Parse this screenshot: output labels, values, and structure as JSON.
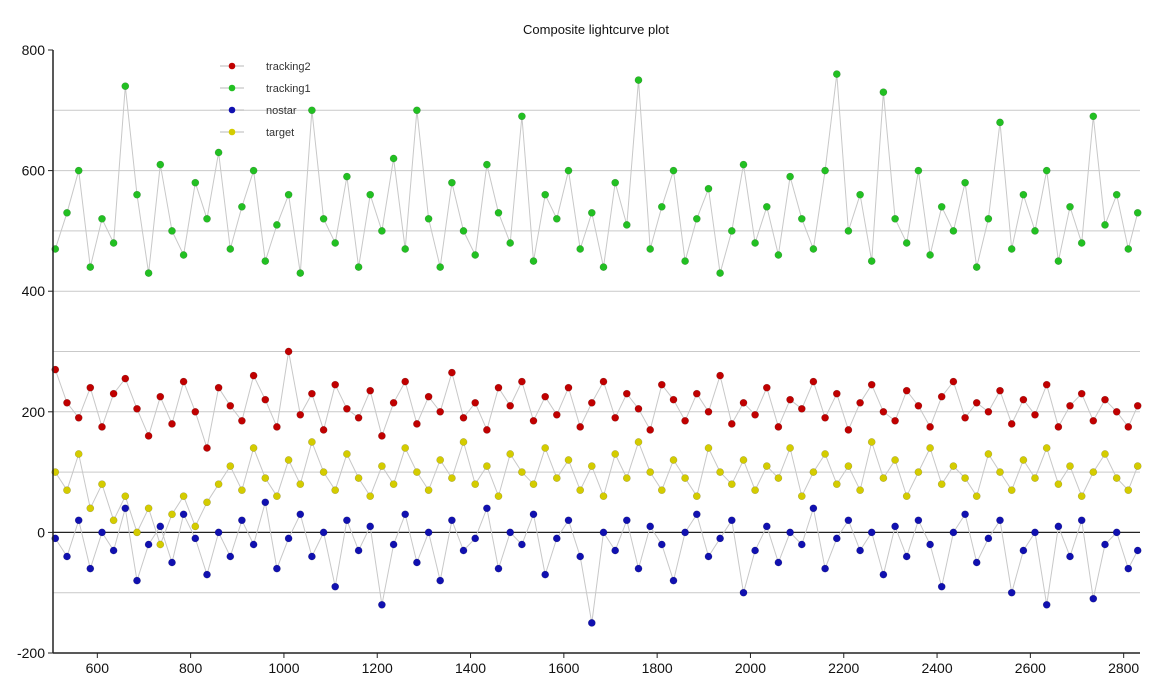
{
  "chart_data": {
    "type": "scatter",
    "title": "Composite lightcurve plot",
    "xlabel": "",
    "ylabel": "",
    "xlim": [
      505,
      2835
    ],
    "ylim": [
      -200,
      800
    ],
    "x_ticks": [
      600,
      800,
      1000,
      1200,
      1400,
      1600,
      1800,
      2000,
      2200,
      2400,
      2600,
      2800
    ],
    "y_ticks": [
      -200,
      0,
      200,
      400,
      600,
      800
    ],
    "grid": true,
    "legend_position": "top-left",
    "connector_color": "#c8c8c8",
    "series": [
      {
        "name": "tracking2",
        "color": "#c00000",
        "x": [
          510,
          535,
          560,
          585,
          610,
          635,
          660,
          685,
          710,
          735,
          760,
          785,
          810,
          835,
          860,
          885,
          910,
          935,
          960,
          985,
          1010,
          1035,
          1060,
          1085,
          1110,
          1135,
          1160,
          1185,
          1210,
          1235,
          1260,
          1285,
          1310,
          1335,
          1360,
          1385,
          1410,
          1435,
          1460,
          1485,
          1510,
          1535,
          1560,
          1585,
          1610,
          1635,
          1660,
          1685,
          1710,
          1735,
          1760,
          1785,
          1810,
          1835,
          1860,
          1885,
          1910,
          1935,
          1960,
          1985,
          2010,
          2035,
          2060,
          2085,
          2110,
          2135,
          2160,
          2185,
          2210,
          2235,
          2260,
          2285,
          2310,
          2335,
          2360,
          2385,
          2410,
          2435,
          2460,
          2485,
          2510,
          2535,
          2560,
          2585,
          2610,
          2635,
          2660,
          2685,
          2710,
          2735,
          2760,
          2785,
          2810,
          2830
        ],
        "y": [
          270,
          215,
          190,
          240,
          175,
          230,
          255,
          205,
          160,
          225,
          180,
          250,
          200,
          140,
          240,
          210,
          185,
          260,
          220,
          175,
          300,
          195,
          230,
          170,
          245,
          205,
          190,
          235,
          160,
          215,
          250,
          180,
          225,
          200,
          265,
          190,
          215,
          170,
          240,
          210,
          250,
          185,
          225,
          195,
          240,
          175,
          215,
          250,
          190,
          230,
          205,
          170,
          245,
          220,
          185,
          230,
          200,
          260,
          180,
          215,
          195,
          240,
          175,
          220,
          205,
          250,
          190,
          230,
          170,
          215,
          245,
          200,
          185,
          235,
          210,
          175,
          225,
          250,
          190,
          215,
          200,
          235,
          180,
          220,
          195,
          245,
          175,
          210,
          230,
          185,
          220,
          200,
          175,
          210
        ]
      },
      {
        "name": "tracking1",
        "color": "#22c022",
        "x": [
          510,
          535,
          560,
          585,
          610,
          635,
          660,
          685,
          710,
          735,
          760,
          785,
          810,
          835,
          860,
          885,
          910,
          935,
          960,
          985,
          1010,
          1035,
          1060,
          1085,
          1110,
          1135,
          1160,
          1185,
          1210,
          1235,
          1260,
          1285,
          1310,
          1335,
          1360,
          1385,
          1410,
          1435,
          1460,
          1485,
          1510,
          1535,
          1560,
          1585,
          1610,
          1635,
          1660,
          1685,
          1710,
          1735,
          1760,
          1785,
          1810,
          1835,
          1860,
          1885,
          1910,
          1935,
          1960,
          1985,
          2010,
          2035,
          2060,
          2085,
          2110,
          2135,
          2160,
          2185,
          2210,
          2235,
          2260,
          2285,
          2310,
          2335,
          2360,
          2385,
          2410,
          2435,
          2460,
          2485,
          2510,
          2535,
          2560,
          2585,
          2610,
          2635,
          2660,
          2685,
          2710,
          2735,
          2760,
          2785,
          2810,
          2830
        ],
        "y": [
          470,
          530,
          600,
          440,
          520,
          480,
          740,
          560,
          430,
          610,
          500,
          460,
          580,
          520,
          630,
          470,
          540,
          600,
          450,
          510,
          560,
          430,
          700,
          520,
          480,
          590,
          440,
          560,
          500,
          620,
          470,
          700,
          520,
          440,
          580,
          500,
          460,
          610,
          530,
          480,
          690,
          450,
          560,
          520,
          600,
          470,
          530,
          440,
          580,
          510,
          750,
          470,
          540,
          600,
          450,
          520,
          570,
          430,
          500,
          610,
          480,
          540,
          460,
          590,
          520,
          470,
          600,
          760,
          500,
          560,
          450,
          730,
          520,
          480,
          600,
          460,
          540,
          500,
          580,
          440,
          520,
          680,
          470,
          560,
          500,
          600,
          450,
          540,
          480,
          690,
          510,
          560,
          470,
          530
        ]
      },
      {
        "name": "nostar",
        "color": "#1010b0",
        "x": [
          510,
          535,
          560,
          585,
          610,
          635,
          660,
          685,
          710,
          735,
          760,
          785,
          810,
          835,
          860,
          885,
          910,
          935,
          960,
          985,
          1010,
          1035,
          1060,
          1085,
          1110,
          1135,
          1160,
          1185,
          1210,
          1235,
          1260,
          1285,
          1310,
          1335,
          1360,
          1385,
          1410,
          1435,
          1460,
          1485,
          1510,
          1535,
          1560,
          1585,
          1610,
          1635,
          1660,
          1685,
          1710,
          1735,
          1760,
          1785,
          1810,
          1835,
          1860,
          1885,
          1910,
          1935,
          1960,
          1985,
          2010,
          2035,
          2060,
          2085,
          2110,
          2135,
          2160,
          2185,
          2210,
          2235,
          2260,
          2285,
          2310,
          2335,
          2360,
          2385,
          2410,
          2435,
          2460,
          2485,
          2510,
          2535,
          2560,
          2585,
          2610,
          2635,
          2660,
          2685,
          2710,
          2735,
          2760,
          2785,
          2810,
          2830
        ],
        "y": [
          -10,
          -40,
          20,
          -60,
          0,
          -30,
          40,
          -80,
          -20,
          10,
          -50,
          30,
          -10,
          -70,
          0,
          -40,
          20,
          -20,
          50,
          -60,
          -10,
          30,
          -40,
          0,
          -90,
          20,
          -30,
          10,
          -120,
          -20,
          30,
          -50,
          0,
          -80,
          20,
          -30,
          -10,
          40,
          -60,
          0,
          -20,
          30,
          -70,
          -10,
          20,
          -40,
          -150,
          0,
          -30,
          20,
          -60,
          10,
          -20,
          -80,
          0,
          30,
          -40,
          -10,
          20,
          -100,
          -30,
          10,
          -50,
          0,
          -20,
          40,
          -60,
          -10,
          20,
          -30,
          0,
          -70,
          10,
          -40,
          20,
          -20,
          -90,
          0,
          30,
          -50,
          -10,
          20,
          -100,
          -30,
          0,
          -120,
          10,
          -40,
          20,
          -110,
          -20,
          0,
          -60,
          -30
        ]
      },
      {
        "name": "target",
        "color": "#d4cc00",
        "x": [
          510,
          535,
          560,
          585,
          610,
          635,
          660,
          685,
          710,
          735,
          760,
          785,
          810,
          835,
          860,
          885,
          910,
          935,
          960,
          985,
          1010,
          1035,
          1060,
          1085,
          1110,
          1135,
          1160,
          1185,
          1210,
          1235,
          1260,
          1285,
          1310,
          1335,
          1360,
          1385,
          1410,
          1435,
          1460,
          1485,
          1510,
          1535,
          1560,
          1585,
          1610,
          1635,
          1660,
          1685,
          1710,
          1735,
          1760,
          1785,
          1810,
          1835,
          1860,
          1885,
          1910,
          1935,
          1960,
          1985,
          2010,
          2035,
          2060,
          2085,
          2110,
          2135,
          2160,
          2185,
          2210,
          2235,
          2260,
          2285,
          2310,
          2335,
          2360,
          2385,
          2410,
          2435,
          2460,
          2485,
          2510,
          2535,
          2560,
          2585,
          2610,
          2635,
          2660,
          2685,
          2710,
          2735,
          2760,
          2785,
          2810,
          2830
        ],
        "y": [
          100,
          70,
          130,
          40,
          80,
          20,
          60,
          0,
          40,
          -20,
          30,
          60,
          10,
          50,
          80,
          110,
          70,
          140,
          90,
          60,
          120,
          80,
          150,
          100,
          70,
          130,
          90,
          60,
          110,
          80,
          140,
          100,
          70,
          120,
          90,
          150,
          80,
          110,
          60,
          130,
          100,
          80,
          140,
          90,
          120,
          70,
          110,
          60,
          130,
          90,
          150,
          100,
          70,
          120,
          90,
          60,
          140,
          100,
          80,
          120,
          70,
          110,
          90,
          140,
          60,
          100,
          130,
          80,
          110,
          70,
          150,
          90,
          120,
          60,
          100,
          140,
          80,
          110,
          90,
          60,
          130,
          100,
          70,
          120,
          90,
          140,
          80,
          110,
          60,
          100,
          130,
          90,
          70,
          110
        ]
      }
    ]
  }
}
